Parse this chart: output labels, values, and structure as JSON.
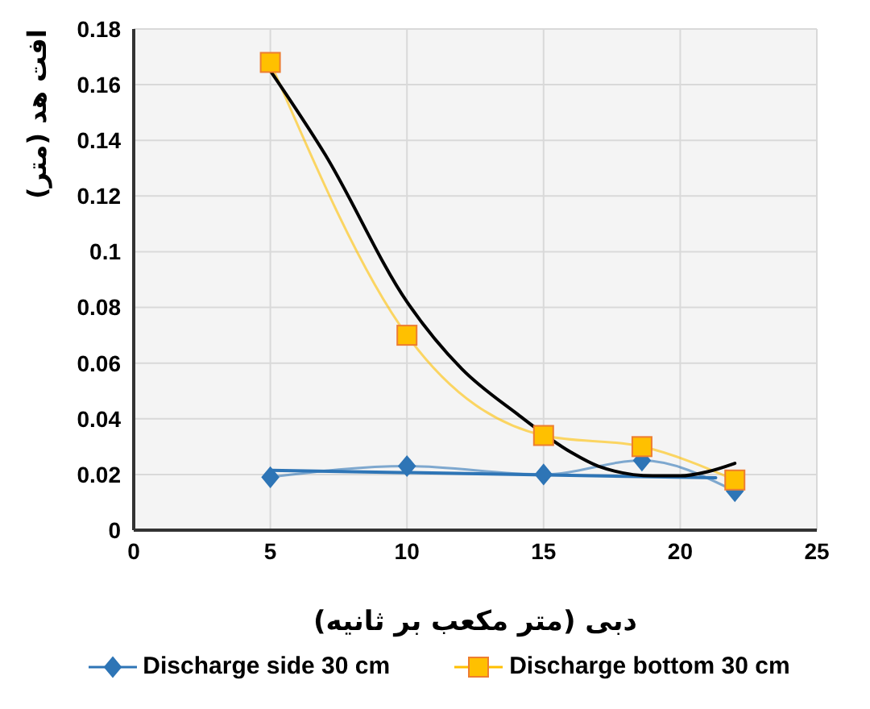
{
  "chart_data": {
    "type": "line",
    "xlabel": "دبی (متر مکعب بر ثانیه)",
    "ylabel": "افت هد (متر)",
    "xlim": [
      0,
      25
    ],
    "xticks": [
      0,
      5,
      10,
      15,
      20,
      25
    ],
    "ylim": [
      0,
      0.18
    ],
    "yticks": [
      0,
      0.02,
      0.04,
      0.06,
      0.08,
      0.1,
      0.12,
      0.14,
      0.16,
      0.18
    ],
    "grid": true,
    "legend": "bottom",
    "series": [
      {
        "name": "Discharge side 30 cm",
        "color": "#2e75b6",
        "marker": "diamond",
        "x": [
          5,
          10,
          15,
          18.6,
          22
        ],
        "values": [
          0.019,
          0.023,
          0.02,
          0.025,
          0.014
        ]
      },
      {
        "name": "Discharge bottom 30 cm",
        "color": "#ffc000",
        "marker": "square",
        "x": [
          5,
          10,
          15,
          18.6,
          22
        ],
        "values": [
          0.168,
          0.07,
          0.034,
          0.03,
          0.018
        ]
      },
      {
        "type": "line",
        "color": "#2e75b6",
        "marker": "none",
        "x": [
          5,
          21.3
        ],
        "values": [
          0.0215,
          0.0188
        ]
      },
      {
        "type": "line",
        "color": "#000000",
        "marker": "none",
        "x": [
          5,
          7,
          10,
          12,
          14,
          16,
          17,
          19,
          20,
          21,
          22
        ],
        "values": [
          0.165,
          0.135,
          0.082,
          0.058,
          0.042,
          0.028,
          0.023,
          0.0195,
          0.0195,
          0.021,
          0.024
        ]
      }
    ]
  }
}
